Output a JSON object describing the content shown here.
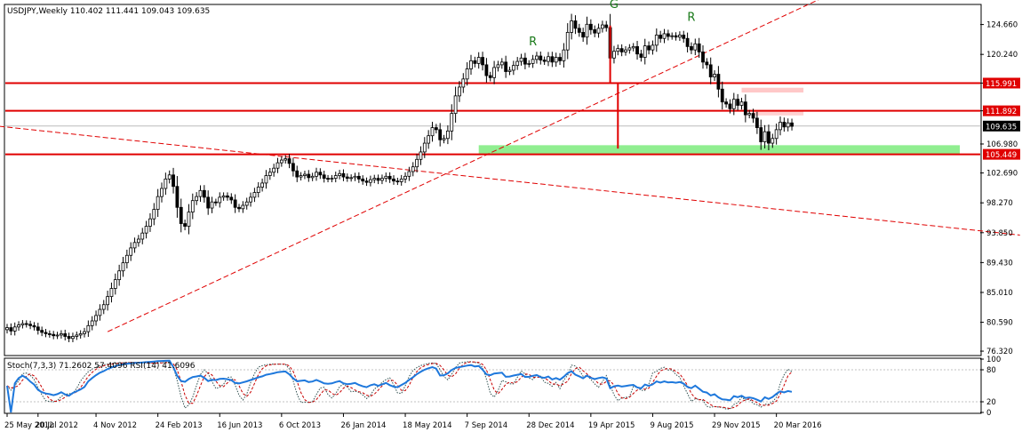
{
  "chart_data": [
    {
      "type": "candlestick",
      "title": "USDJPY,Weekly 110.402 111.441 109.043 109.635",
      "y_ticks": [
        76.32,
        80.59,
        85.01,
        89.43,
        93.85,
        98.27,
        102.69,
        106.98,
        111.892,
        115.991,
        120.24,
        124.66
      ],
      "y_tick_labels": [
        "76.320",
        "80.590",
        "85.010",
        "89.430",
        "93.850",
        "98.270",
        "102.690",
        "106.980",
        "111.892",
        "115.991",
        "120.240",
        "124.660"
      ],
      "ylim": [
        75.8,
        127.5
      ],
      "x_tick_labels": [
        "25 May 2012",
        "20 Jul 2012",
        "4 Nov 2012",
        "24 Feb 2013",
        "16 Jun 2013",
        "6 Oct 2013",
        "26 Jan 2014",
        "18 May 2014",
        "7 Sep 2014",
        "28 Dec 2014",
        "19 Apr 2015",
        "9 Aug 2015",
        "29 Nov 2015",
        "20 Mar 2016"
      ],
      "x_tick_index": [
        0,
        8,
        23,
        39,
        55,
        71,
        87,
        103,
        119,
        135,
        151,
        167,
        183,
        199
      ],
      "price_tags": [
        {
          "value": 115.991,
          "label": "115.991",
          "color": "#e00000"
        },
        {
          "value": 111.892,
          "label": "111.892",
          "color": "#e00000"
        },
        {
          "value": 109.635,
          "label": "109.635",
          "color": "#000000"
        },
        {
          "value": 105.449,
          "label": "105.449",
          "color": "#e00000"
        }
      ],
      "horizontal_levels": [
        115.991,
        111.892,
        105.449
      ],
      "trendlines": [
        {
          "from": [
            26,
            79.2
          ],
          "to": [
            218,
            130.5
          ],
          "style": "dashed",
          "color": "#e00000"
        },
        {
          "from": [
            -2,
            109.6
          ],
          "to": [
            262,
            93.5
          ],
          "style": "dashed",
          "color": "#e00000"
        }
      ],
      "pattern_labels": [
        {
          "text": "R",
          "index": 136,
          "value": 121.6
        },
        {
          "text": "G",
          "index": 157,
          "value": 127.1
        },
        {
          "text": "R",
          "index": 177,
          "value": 125.2
        }
      ],
      "close_series": [
        79.8,
        79.3,
        79.9,
        80.2,
        80.4,
        80.3,
        80.1,
        79.9,
        79.4,
        79.1,
        78.9,
        78.8,
        78.6,
        78.7,
        78.9,
        78.5,
        78.2,
        78.5,
        78.7,
        78.9,
        79.2,
        80.1,
        80.8,
        81.6,
        82.5,
        83.2,
        84.4,
        85.6,
        86.9,
        88.2,
        89.4,
        90.5,
        91.6,
        92.4,
        92.9,
        93.8,
        94.8,
        95.9,
        97.3,
        99.2,
        100.4,
        101.8,
        102.4,
        100.7,
        97.6,
        95.2,
        94.8,
        96.9,
        98.6,
        99.2,
        100.1,
        99.1,
        97.5,
        98.4,
        98.3,
        99.1,
        99.3,
        99.1,
        98.7,
        97.6,
        97.4,
        97.9,
        98.4,
        99.1,
        99.8,
        100.6,
        101.2,
        102.3,
        102.8,
        103.4,
        104.2,
        104.6,
        104.8,
        104.1,
        103.0,
        102.1,
        102.3,
        102.5,
        102.0,
        102.2,
        102.8,
        102.4,
        101.9,
        101.8,
        101.9,
        102.3,
        102.6,
        102.1,
        101.9,
        102.0,
        102.2,
        101.8,
        101.5,
        101.3,
        101.7,
        101.9,
        101.6,
        101.9,
        102.2,
        101.8,
        101.5,
        101.4,
        101.8,
        102.2,
        102.9,
        103.6,
        104.7,
        105.8,
        107.1,
        108.2,
        109.4,
        109.1,
        107.6,
        107.8,
        108.9,
        111.5,
        114.1,
        115.4,
        116.6,
        118.1,
        119.3,
        118.9,
        119.8,
        118.7,
        117.1,
        116.8,
        118.3,
        118.7,
        119.1,
        117.7,
        117.9,
        118.6,
        119.2,
        119.7,
        118.8,
        118.9,
        119.5,
        120.0,
        119.4,
        119.2,
        119.9,
        119.1,
        119.8,
        119.3,
        120.9,
        123.5,
        125.2,
        124.1,
        123.5,
        122.8,
        124.7,
        123.9,
        123.4,
        124.1,
        124.6,
        124.2,
        119.7,
        120.7,
        121.1,
        120.6,
        120.9,
        121.2,
        121.4,
        120.3,
        119.8,
        121.5,
        120.9,
        121.6,
        123.1,
        122.6,
        123.3,
        122.9,
        123.0,
        122.8,
        123.1,
        122.6,
        121.4,
        120.9,
        121.8,
        120.6,
        119.1,
        118.7,
        116.9,
        117.3,
        115.1,
        113.2,
        112.9,
        112.2,
        113.6,
        112.7,
        113.2,
        111.3,
        111.5,
        110.8,
        109.4,
        107.3,
        108.8,
        107.1,
        107.8,
        109.1,
        110.2,
        109.5,
        110.1,
        109.6
      ]
    },
    {
      "type": "line",
      "title": "Stoch(7,3,3) 71.2602 57.4096  RSI(14) 41.6096",
      "ylim": [
        0,
        100
      ],
      "y_ticks": [
        0,
        20,
        80,
        100
      ],
      "y_tick_labels": [
        "0",
        "20",
        "80",
        "100"
      ],
      "series": [
        {
          "name": "Stoch(7,3,3)",
          "color": "#2f4f4f",
          "style": "dotted"
        },
        {
          "name": "",
          "color": "#c80000",
          "style": "dashed"
        },
        {
          "name": "RSI(14)",
          "color": "#1e78dc",
          "style": "solid"
        }
      ],
      "last_values": [
        71.2602,
        57.4096,
        41.6096
      ]
    }
  ],
  "colors": {
    "bull_candle": "#ffffff",
    "bear_candle": "#000000",
    "level_line": "#e00000",
    "support_zone": "#90ee90",
    "pattern_label": "#1a7a1a",
    "grid": "#c0c0c0"
  }
}
